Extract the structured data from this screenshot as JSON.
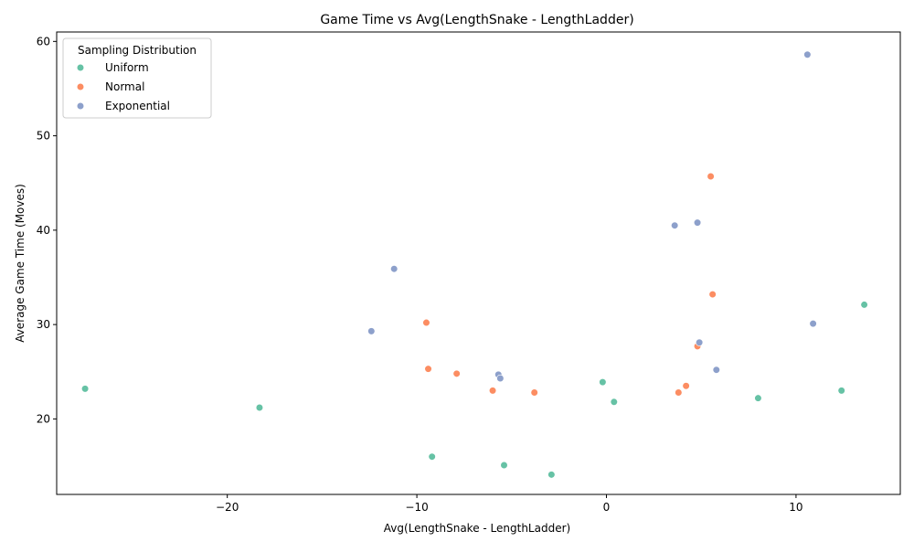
{
  "chart_data": {
    "type": "scatter",
    "title": "Game Time vs Avg(LengthSnake - LengthLadder)",
    "xlabel": "Avg(LengthSnake - LengthLadder)",
    "ylabel": "Average Game Time (Moves)",
    "xlim": [
      -29,
      15.5
    ],
    "ylim": [
      12,
      61
    ],
    "xticks": [
      -20,
      -10,
      0,
      10
    ],
    "yticks": [
      20,
      30,
      40,
      50,
      60
    ],
    "grid": false,
    "legend": {
      "title": "Sampling Distribution",
      "placement": "top-left"
    },
    "series": [
      {
        "name": "Uniform",
        "color": "#66c2a5",
        "points": [
          {
            "x": -27.5,
            "y": 23.2
          },
          {
            "x": -18.3,
            "y": 21.2
          },
          {
            "x": -9.2,
            "y": 16.0
          },
          {
            "x": -5.4,
            "y": 15.1
          },
          {
            "x": -2.9,
            "y": 14.1
          },
          {
            "x": -0.2,
            "y": 23.9
          },
          {
            "x": 0.4,
            "y": 21.8
          },
          {
            "x": 8.0,
            "y": 22.2
          },
          {
            "x": 12.4,
            "y": 23.0
          },
          {
            "x": 13.6,
            "y": 32.1
          }
        ]
      },
      {
        "name": "Normal",
        "color": "#fc8d62",
        "points": [
          {
            "x": -9.5,
            "y": 30.2
          },
          {
            "x": -9.4,
            "y": 25.3
          },
          {
            "x": -7.9,
            "y": 24.8
          },
          {
            "x": -6.0,
            "y": 23.0
          },
          {
            "x": -3.8,
            "y": 22.8
          },
          {
            "x": 3.8,
            "y": 22.8
          },
          {
            "x": 4.2,
            "y": 23.5
          },
          {
            "x": 4.8,
            "y": 27.7
          },
          {
            "x": 5.5,
            "y": 45.7
          },
          {
            "x": 5.6,
            "y": 33.2
          }
        ]
      },
      {
        "name": "Exponential",
        "color": "#8da0cb",
        "points": [
          {
            "x": -12.4,
            "y": 29.3
          },
          {
            "x": -11.2,
            "y": 35.9
          },
          {
            "x": -5.7,
            "y": 24.7
          },
          {
            "x": -5.6,
            "y": 24.3
          },
          {
            "x": 3.6,
            "y": 40.5
          },
          {
            "x": 4.8,
            "y": 40.8
          },
          {
            "x": 4.9,
            "y": 28.1
          },
          {
            "x": 5.8,
            "y": 25.2
          },
          {
            "x": 10.6,
            "y": 58.6
          },
          {
            "x": 10.9,
            "y": 30.1
          }
        ]
      }
    ]
  }
}
